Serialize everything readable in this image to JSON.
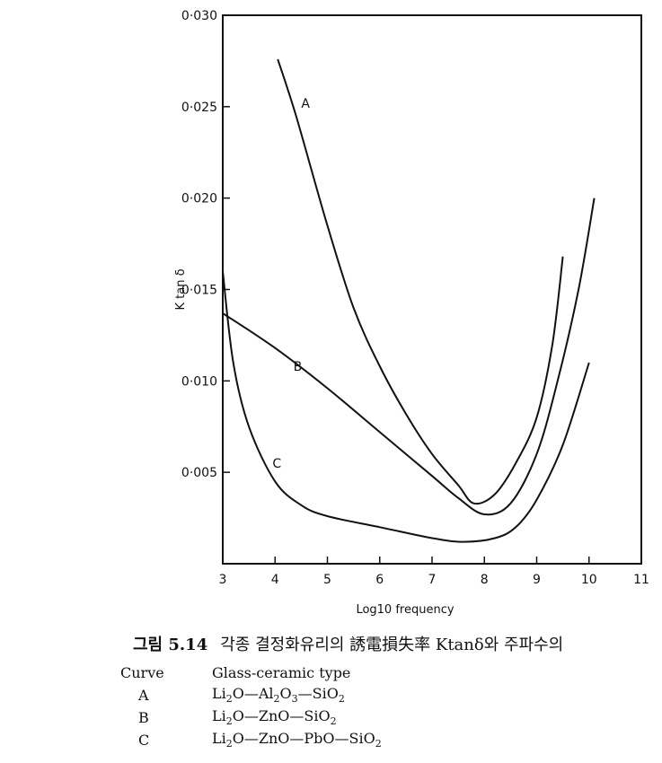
{
  "figure": {
    "number": "그림 5.14",
    "caption": "각종 결정화유리의 誘電損失率 Ktanδ와 주파수의"
  },
  "legend": {
    "header_curve": "Curve",
    "header_type": "Glass-ceramic type",
    "rows": [
      {
        "curve": "A",
        "type": [
          [
            "Li",
            "2"
          ],
          [
            "O—Al",
            "2"
          ],
          [
            "O",
            "3"
          ],
          [
            "—SiO",
            "2"
          ]
        ]
      },
      {
        "curve": "B",
        "type": [
          [
            "Li",
            "2"
          ],
          [
            "O—ZnO—SiO",
            "2"
          ]
        ]
      },
      {
        "curve": "C",
        "type": [
          [
            "Li",
            "2"
          ],
          [
            "O—ZnO—PbO—SiO",
            "2"
          ]
        ]
      }
    ]
  },
  "chart_data": {
    "type": "line",
    "title": "",
    "xlabel": "Log10 frequency",
    "ylabel": "K tan δ",
    "xlim": [
      3,
      11
    ],
    "ylim": [
      0,
      0.03
    ],
    "xticks": [
      3,
      4,
      5,
      6,
      7,
      8,
      9,
      10,
      11
    ],
    "xtick_labels": [
      "3",
      "4",
      "5",
      "6",
      "7",
      "8",
      "9",
      "10",
      "11"
    ],
    "yticks": [
      0.005,
      0.01,
      0.015,
      0.02,
      0.025,
      0.03
    ],
    "ytick_labels": [
      "0·005",
      "0·010",
      "0·015",
      "0·020",
      "0·025",
      "0·030"
    ],
    "grid": false,
    "series": [
      {
        "name": "A",
        "x": [
          4.05,
          4.4,
          5.0,
          5.5,
          6.0,
          6.5,
          7.0,
          7.5,
          7.8,
          8.2,
          8.6,
          9.0,
          9.3,
          9.5
        ],
        "y": [
          0.0276,
          0.0245,
          0.0185,
          0.014,
          0.0108,
          0.0082,
          0.006,
          0.0043,
          0.0033,
          0.0038,
          0.0055,
          0.008,
          0.012,
          0.0168
        ]
      },
      {
        "name": "B",
        "x": [
          3.0,
          4.0,
          5.0,
          6.0,
          7.0,
          7.5,
          8.0,
          8.5,
          9.0,
          9.4,
          9.8,
          10.1
        ],
        "y": [
          0.0137,
          0.0118,
          0.0096,
          0.0072,
          0.0048,
          0.0036,
          0.0027,
          0.0033,
          0.006,
          0.01,
          0.015,
          0.02
        ]
      },
      {
        "name": "C",
        "x": [
          3.0,
          3.2,
          3.5,
          4.0,
          4.5,
          5.0,
          6.0,
          7.0,
          7.6,
          8.2,
          8.6,
          9.0,
          9.5,
          10.0
        ],
        "y": [
          0.016,
          0.011,
          0.0075,
          0.0045,
          0.0032,
          0.0026,
          0.002,
          0.0014,
          0.0012,
          0.0014,
          0.002,
          0.0035,
          0.0065,
          0.011
        ]
      }
    ],
    "curve_labels": [
      {
        "text": "A",
        "x": 4.5,
        "y": 0.0252
      },
      {
        "text": "B",
        "x": 4.35,
        "y": 0.0108
      },
      {
        "text": "C",
        "x": 3.95,
        "y": 0.0055
      }
    ]
  }
}
